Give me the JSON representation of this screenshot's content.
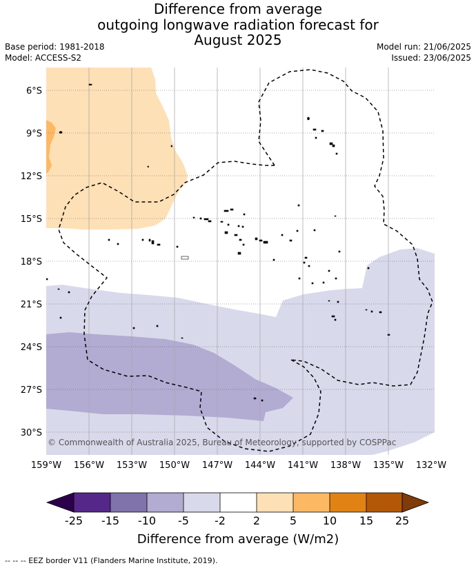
{
  "title": {
    "line1": "Difference from average",
    "line2": "outgoing longwave radiation forecast for",
    "line3": "August 2025"
  },
  "meta": {
    "base_period": "Base period: 1981-2018",
    "model": "Model: ACCESS-S2",
    "model_run": "Model run: 21/06/2025",
    "issued": "Issued: 23/06/2025"
  },
  "map": {
    "lat_ticks": [
      "6°S",
      "9°S",
      "12°S",
      "15°S",
      "18°S",
      "21°S",
      "24°S",
      "27°S",
      "30°S"
    ],
    "lon_ticks": [
      "159°W",
      "156°W",
      "153°W",
      "150°W",
      "147°W",
      "144°W",
      "141°W",
      "138°W",
      "135°W",
      "132°W"
    ],
    "copyright": "© Commonwealth of Australia 2025, Bureau of Meteorology, supported by COSPPac"
  },
  "legend": {
    "ticks": [
      "-25",
      "-15",
      "-10",
      "-5",
      "-2",
      "2",
      "5",
      "10",
      "15",
      "25"
    ],
    "colors": [
      "#2d004b",
      "#542788",
      "#8073ac",
      "#b2abd2",
      "#d8daeb",
      "#ffffff",
      "#fee0b6",
      "#fdb863",
      "#e08214",
      "#b35806",
      "#7f3b08"
    ],
    "label": "Difference from average (W/m2)"
  },
  "footnote": "-- -- -- EEZ border V11 (Flanders Marine Institute, 2019)."
}
